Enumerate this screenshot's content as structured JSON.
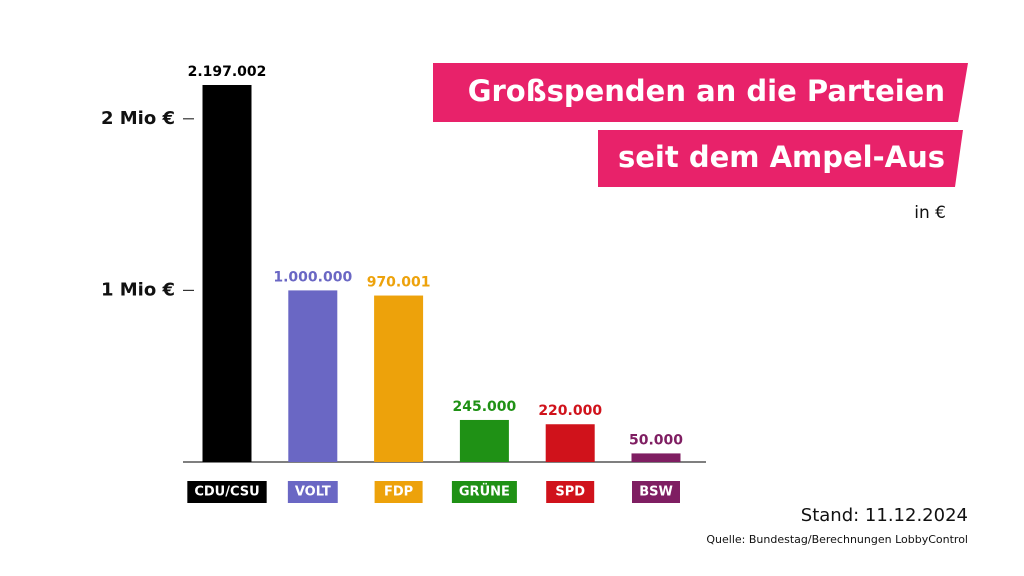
{
  "chart_data": {
    "type": "bar",
    "title": "Großspenden an die Parteien",
    "subtitle": "seit dem Ampel-Aus",
    "unit": "in €",
    "categories": [
      "CDU/CSU",
      "VOLT",
      "FDP",
      "GRÜNE",
      "SPD",
      "BSW"
    ],
    "values": [
      2197002,
      1000000,
      970001,
      245000,
      220000,
      50000
    ],
    "value_labels": [
      "2.197.002",
      "1.000.000",
      "970.001",
      "245.000",
      "220.000",
      "50.000"
    ],
    "colors": [
      "#000000",
      "#6a67c4",
      "#eda20b",
      "#1f9115",
      "#d0121b",
      "#7f1e62"
    ],
    "ylim": [
      0,
      2500000
    ],
    "yticks": [
      {
        "value": 1000000,
        "label": "1 Mio €"
      },
      {
        "value": 2000000,
        "label": "2 Mio €"
      }
    ],
    "note": "Stand: 11.12.2024",
    "source": "Quelle: Bundestag/Berechnungen LobbyControl"
  }
}
